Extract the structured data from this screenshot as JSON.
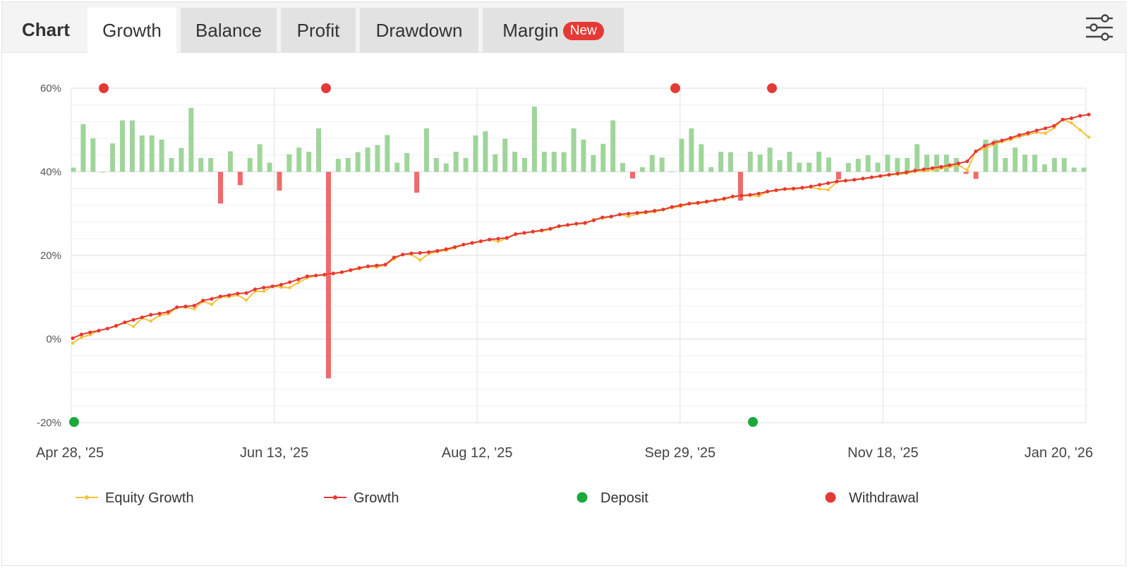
{
  "header": {
    "label": "Chart",
    "tabs": [
      {
        "label": "Growth",
        "active": true
      },
      {
        "label": "Balance",
        "active": false
      },
      {
        "label": "Profit",
        "active": false
      },
      {
        "label": "Drawdown",
        "active": false
      },
      {
        "label": "Margin",
        "active": false,
        "badge": "New"
      }
    ],
    "settings_icon": "sliders-icon"
  },
  "colors": {
    "equity": "#f5c33b",
    "growth": "#e53935",
    "deposit": "#1aaa3c",
    "withdrawal": "#e53935",
    "bar_positive": "#9fd59a",
    "bar_negative": "#f06a6a"
  },
  "chart_data": {
    "type": "line",
    "grid": true,
    "ylim": [
      -20,
      60
    ],
    "y_ticks": [
      "60%",
      "40%",
      "20%",
      "0%",
      "-20%"
    ],
    "x_ticks": [
      "Apr 28, '25",
      "Jun 13, '25",
      "Aug 12, '25",
      "Sep 29, '25",
      "Nov 18, '25",
      "Jan 20, '26"
    ],
    "legend_position": "bottom",
    "legend": [
      "Equity Growth",
      "Growth",
      "Deposit",
      "Withdrawal"
    ],
    "series": [
      {
        "name": "Growth",
        "values": [
          0.2,
          1.1,
          1.6,
          2.0,
          2.5,
          3.2,
          4.0,
          4.6,
          5.2,
          5.8,
          6.1,
          6.5,
          7.6,
          7.8,
          8.0,
          9.2,
          9.6,
          10.2,
          10.5,
          10.9,
          11.0,
          11.9,
          12.3,
          12.6,
          13.0,
          13.6,
          14.3,
          15.0,
          15.2,
          15.4,
          15.7,
          16.0,
          16.5,
          17.0,
          17.4,
          17.6,
          17.8,
          19.5,
          20.2,
          20.5,
          20.6,
          20.8,
          21.1,
          21.5,
          22.0,
          22.6,
          23.0,
          23.4,
          23.8,
          24.0,
          24.2,
          25.1,
          25.4,
          25.7,
          26.0,
          26.4,
          27.0,
          27.3,
          27.6,
          27.8,
          28.4,
          29.1,
          29.3,
          29.8,
          30.0,
          30.2,
          30.4,
          30.7,
          31.0,
          31.6,
          32.0,
          32.4,
          32.6,
          32.9,
          33.2,
          33.6,
          34.1,
          34.3,
          34.5,
          34.8,
          35.3,
          35.6,
          35.9,
          36.0,
          36.2,
          36.5,
          36.9,
          37.3,
          37.7,
          37.9,
          38.1,
          38.4,
          38.7,
          39.0,
          39.3,
          39.6,
          39.9,
          40.3,
          40.6,
          40.9,
          41.2,
          41.6,
          42.0,
          42.5,
          44.9,
          46.2,
          46.9,
          47.5,
          48.1,
          48.8,
          49.3,
          49.9,
          50.4,
          51.0,
          52.5,
          52.8,
          53.4,
          53.7
        ]
      },
      {
        "name": "Equity Growth",
        "values": [
          -1.0,
          0.4,
          1.0,
          2.0,
          2.5,
          3.0,
          4.0,
          3.0,
          5.0,
          4.3,
          5.6,
          6.0,
          7.5,
          7.6,
          7.2,
          9.0,
          8.3,
          10.0,
          10.1,
          10.5,
          9.3,
          11.4,
          11.4,
          12.6,
          12.4,
          12.3,
          13.5,
          14.6,
          15.1,
          15.3,
          15.6,
          15.9,
          16.4,
          16.8,
          17.3,
          17.2,
          17.7,
          19.1,
          20.3,
          20.2,
          18.9,
          20.4,
          20.9,
          21.2,
          21.8,
          22.5,
          22.9,
          23.3,
          23.8,
          23.3,
          24.1,
          25.0,
          25.3,
          25.7,
          25.8,
          26.2,
          26.9,
          27.2,
          27.5,
          27.6,
          28.6,
          28.9,
          29.2,
          29.8,
          29.3,
          29.9,
          30.2,
          30.4,
          30.9,
          31.4,
          31.7,
          32.3,
          32.4,
          32.7,
          33.1,
          33.4,
          34.0,
          34.2,
          34.3,
          34.2,
          35.2,
          35.5,
          35.8,
          35.8,
          36.1,
          36.3,
          35.9,
          35.7,
          37.6,
          37.8,
          38.1,
          38.3,
          38.6,
          38.9,
          39.2,
          39.4,
          39.6,
          40.1,
          40.2,
          40.5,
          40.8,
          41.2,
          41.6,
          40.4,
          44.9,
          45.5,
          46.5,
          47.2,
          47.7,
          48.4,
          48.9,
          49.4,
          49.2,
          50.5,
          52.5,
          51.7,
          50.0,
          48.3
        ]
      }
    ],
    "period_bars": {
      "baseline": 40,
      "values": [
        41.0,
        51.4,
        48.0,
        40.0,
        46.8,
        52.3,
        52.3,
        48.7,
        48.7,
        47.7,
        43.3,
        45.7,
        55.3,
        43.3,
        43.3,
        32.4,
        44.9,
        36.8,
        43.3,
        46.6,
        42.2,
        35.5,
        44.2,
        45.8,
        44.8,
        50.4,
        -9.4,
        43.1,
        43.3,
        44.7,
        45.8,
        46.4,
        48.8,
        42.2,
        44.5,
        35.0,
        50.4,
        43.3,
        42.0,
        44.8,
        43.3,
        48.7,
        49.7,
        44.2,
        47.9,
        44.8,
        43.3,
        55.6,
        44.8,
        44.8,
        44.7,
        50.4,
        47.7,
        44.0,
        46.7,
        52.3,
        42.1,
        38.4,
        41.1,
        44.0,
        43.4,
        40.1,
        47.9,
        50.4,
        46.6,
        41.1,
        44.8,
        44.7,
        33.1,
        44.8,
        44.1,
        45.8,
        42.8,
        44.8,
        42.2,
        42.2,
        44.8,
        43.4,
        38.2,
        42.1,
        43.1,
        44.0,
        42.2,
        44.1,
        43.3,
        43.3,
        46.6,
        44.1,
        44.1,
        44.1,
        43.3,
        39.5,
        38.3,
        47.7,
        47.7,
        43.3,
        45.8,
        44.1,
        44.1,
        41.8,
        43.3,
        43.3,
        41.0,
        41.0
      ]
    },
    "deposit_markers": [
      "Apr 28, '25",
      "Oct 15, '25"
    ],
    "withdrawal_markers": [
      "May 5, '25",
      "Jun 26, '25",
      "Sep 27, '25",
      "Oct 20, '25"
    ]
  }
}
